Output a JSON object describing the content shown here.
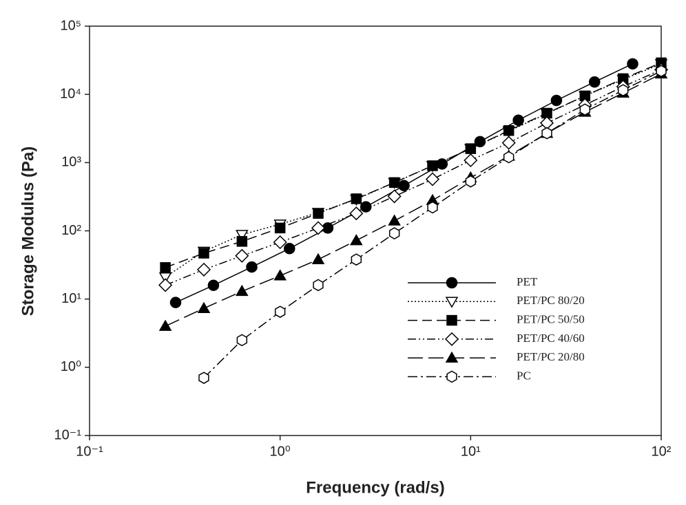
{
  "chart_data": {
    "type": "line",
    "x_label": "Frequency (rad/s)",
    "y_label": "Storage Modulus (Pa)",
    "xlog": true,
    "ylog": true,
    "xlim": [
      0.1,
      100
    ],
    "ylim": [
      0.1,
      100000
    ],
    "xticks": [
      {
        "value": 0.1,
        "label": "10⁻¹"
      },
      {
        "value": 1,
        "label": "10⁰"
      },
      {
        "value": 10,
        "label": "10¹"
      },
      {
        "value": 100,
        "label": "10²"
      }
    ],
    "yticks": [
      {
        "value": 0.1,
        "label": "10⁻¹"
      },
      {
        "value": 1,
        "label": "10⁰"
      },
      {
        "value": 10,
        "label": "10¹"
      },
      {
        "value": 100,
        "label": "10²"
      },
      {
        "value": 1000,
        "label": "10³"
      },
      {
        "value": 10000,
        "label": "10⁴"
      },
      {
        "value": 100000,
        "label": "10⁵"
      }
    ],
    "legend": "lower right",
    "series": [
      {
        "name": "PET",
        "color": "#000000",
        "marker": "circle",
        "filled": true,
        "dash": "solid",
        "x": [
          0.283,
          0.447,
          0.71,
          1.12,
          1.78,
          2.82,
          4.47,
          7.08,
          11.2,
          17.8,
          28.2,
          44.7,
          70.8
        ],
        "values": [
          8.9,
          15.9,
          29.5,
          55,
          110,
          225,
          460,
          955,
          2030,
          4180,
          8150,
          15200,
          28000
        ]
      },
      {
        "name": "PET/PC 80/20",
        "color": "#000000",
        "marker": "triangle-down",
        "filled": false,
        "dash": "dotted",
        "x": [
          0.25,
          0.398,
          0.631,
          1,
          1.585,
          2.512,
          3.98,
          6.31,
          10,
          15.85,
          25.12,
          39.8,
          63.1,
          100
        ],
        "values": [
          21,
          50,
          88,
          125,
          185,
          290,
          510,
          900,
          1600,
          2900,
          5200,
          9500,
          16500,
          28000
        ]
      },
      {
        "name": "PET/PC 50/50",
        "color": "#000000",
        "marker": "square",
        "filled": true,
        "dash": "dashed",
        "x": [
          0.25,
          0.398,
          0.631,
          1,
          1.585,
          2.512,
          3.98,
          6.31,
          10,
          15.85,
          25.12,
          39.8,
          63.1,
          100
        ],
        "values": [
          29,
          47,
          70,
          110,
          180,
          295,
          510,
          900,
          1600,
          2950,
          5300,
          9500,
          17000,
          29000
        ]
      },
      {
        "name": "PET/PC 40/60",
        "color": "#000000",
        "marker": "diamond",
        "filled": false,
        "dash": "dash-dot-dot",
        "x": [
          0.25,
          0.398,
          0.631,
          1,
          1.585,
          2.512,
          3.98,
          6.31,
          10,
          15.85,
          25.12,
          39.8,
          63.1,
          100
        ],
        "values": [
          16,
          27,
          43,
          68,
          110,
          180,
          320,
          570,
          1080,
          1950,
          3800,
          7000,
          13000,
          23000
        ]
      },
      {
        "name": "PET/PC 20/80",
        "color": "#000000",
        "marker": "triangle-up",
        "filled": true,
        "dash": "long-dash",
        "x": [
          0.25,
          0.398,
          0.631,
          1,
          1.585,
          2.512,
          3.98,
          6.31,
          10,
          15.85,
          25.12,
          39.8,
          63.1,
          100
        ],
        "values": [
          4,
          7.3,
          13,
          22,
          38,
          72,
          140,
          280,
          600,
          1250,
          2700,
          5500,
          10500,
          20000
        ]
      },
      {
        "name": "PC",
        "color": "#000000",
        "marker": "hexagon",
        "filled": false,
        "dash": "dash-dot",
        "x": [
          0.398,
          0.631,
          1,
          1.585,
          2.512,
          3.98,
          6.31,
          10,
          15.85,
          25.12,
          39.8,
          63.1,
          100
        ],
        "values": [
          0.7,
          2.5,
          6.5,
          16,
          38,
          92,
          220,
          530,
          1200,
          2700,
          6000,
          11500,
          22000
        ]
      }
    ]
  }
}
